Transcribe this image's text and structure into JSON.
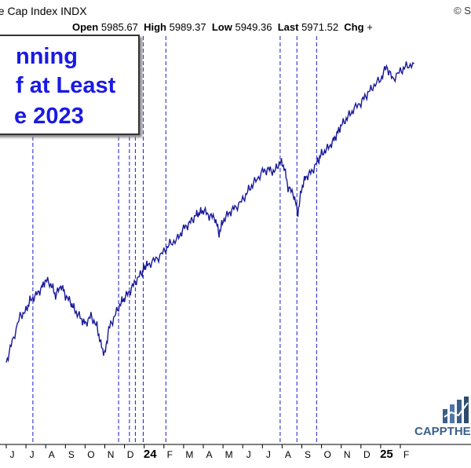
{
  "header": {
    "title": "ge Cap Index  INDX",
    "source_partial": "© S",
    "ohlc": {
      "open_label": "Open",
      "open_value": "5985.67",
      "high_label": "High",
      "high_value": "5989.37",
      "low_label": "Low",
      "low_value": "5949.36",
      "last_label": "Last",
      "last_value": "5971.52",
      "chg_label": "Chg",
      "chg_value": "+"
    }
  },
  "annotation": {
    "line1": "nning",
    "line2": "f at Least",
    "line3": "e 2023"
  },
  "logo": {
    "text": "CAPPTHE",
    "icon": "bar-chart-logo-icon"
  },
  "colors": {
    "line": "#1a1a9a",
    "vlines": "#1a1acc",
    "annotation_text": "#1919e6",
    "logo": "#3a5f8a"
  },
  "chart_data": {
    "type": "line",
    "title": "",
    "xlabel": "",
    "ylabel": "",
    "x_ticks": [
      "J",
      "J",
      "A",
      "S",
      "O",
      "N",
      "D",
      "24",
      "F",
      "M",
      "A",
      "M",
      "J",
      "J",
      "A",
      "S",
      "O",
      "N",
      "D",
      "25",
      "F"
    ],
    "bold_ticks": [
      "24",
      "25"
    ],
    "grid": false,
    "vertical_markers_approx_month_index": [
      1.35,
      5.7,
      6.25,
      6.55,
      6.95,
      8.1,
      13.9,
      14.75,
      15.75
    ],
    "series": [
      {
        "x": [
          0,
          0.3,
          0.7,
          1.0,
          1.2,
          1.5,
          1.8,
          2.0,
          2.3,
          2.5,
          2.8,
          3.0,
          3.3,
          3.5,
          3.8,
          4.0,
          4.3,
          4.6,
          4.8,
          5.0,
          5.2,
          5.5,
          5.8,
          6.0,
          6.3,
          6.6,
          6.9,
          7.0,
          7.2,
          7.6,
          8.0,
          8.3,
          8.7,
          9.0,
          9.3,
          9.6,
          9.8,
          10.0,
          10.3,
          10.6,
          10.8,
          11.0,
          11.3,
          11.6,
          12.0,
          12.3,
          12.6,
          13.0,
          13.3,
          13.6,
          13.9,
          14.1,
          14.3,
          14.6,
          14.8,
          15.0,
          15.2,
          15.5,
          15.8,
          16.0,
          16.3,
          16.6,
          16.8,
          17.0,
          17.3,
          17.6,
          18.0,
          18.3,
          18.6,
          19.0,
          19.3,
          19.6,
          20.0,
          20.3,
          20.7
        ],
        "y": [
          0.1,
          0.18,
          0.28,
          0.3,
          0.34,
          0.36,
          0.39,
          0.42,
          0.4,
          0.36,
          0.4,
          0.36,
          0.33,
          0.3,
          0.27,
          0.25,
          0.28,
          0.24,
          0.17,
          0.13,
          0.23,
          0.28,
          0.33,
          0.35,
          0.38,
          0.42,
          0.45,
          0.47,
          0.48,
          0.5,
          0.53,
          0.56,
          0.58,
          0.62,
          0.64,
          0.67,
          0.68,
          0.69,
          0.67,
          0.66,
          0.6,
          0.65,
          0.68,
          0.7,
          0.73,
          0.77,
          0.8,
          0.84,
          0.85,
          0.84,
          0.88,
          0.86,
          0.78,
          0.75,
          0.68,
          0.78,
          0.82,
          0.84,
          0.88,
          0.91,
          0.93,
          0.96,
          0.99,
          1.02,
          1.05,
          1.08,
          1.11,
          1.14,
          1.17,
          1.2,
          1.25,
          1.2,
          1.23,
          1.25,
          1.26
        ]
      }
    ]
  }
}
